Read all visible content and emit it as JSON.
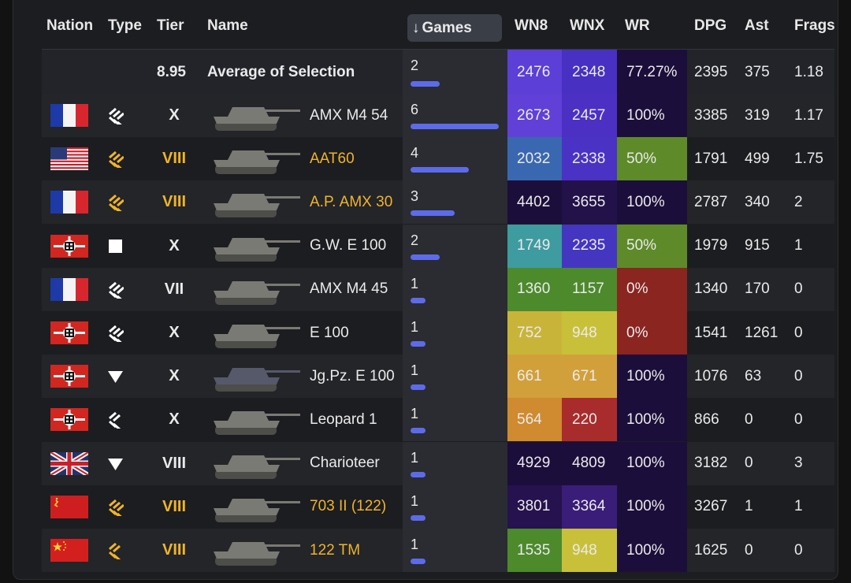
{
  "colors": {
    "tier_highlight": "#f0b429",
    "bar": "#5d6bea",
    "panel_bg": "#1c1d20"
  },
  "headers": {
    "nation": "Nation",
    "type": "Type",
    "tier": "Tier",
    "name": "Name",
    "games": "Games",
    "sort_arrow": "↓",
    "wn8": "WN8",
    "wnx": "WNX",
    "wr": "WR",
    "dpg": "DPG",
    "ast": "Ast",
    "frags": "Frags"
  },
  "average": {
    "tier": "8.95",
    "name": "Average of Selection",
    "games": "2",
    "games_fraction": 0.33,
    "wn8": "2476",
    "wnx": "2348",
    "wr": "77.27%",
    "dpg": "2395",
    "ast": "375",
    "frags": "1.18",
    "wn8_color": "#5b3fd6",
    "wnx_color": "#4730c2",
    "wr_color": "#1c0e3a"
  },
  "rows": [
    {
      "nation": "France",
      "flag": "fr",
      "type_icon": "heavy-tank-icon",
      "type_color": "#ffffff",
      "tier": "X",
      "premium": false,
      "tank_icon": "amx-m4-54-icon",
      "name": "AMX M4 54",
      "games": "6",
      "games_fraction": 1.0,
      "wn8": "2673",
      "wnx": "2457",
      "wr": "100%",
      "dpg": "3385",
      "ast": "319",
      "frags": "1.17",
      "wn8_color": "#6140d8",
      "wnx_color": "#4c30c4",
      "wr_color": "#1c0e3a"
    },
    {
      "nation": "USA",
      "flag": "us",
      "type_icon": "heavy-tank-icon",
      "type_color": "#f0b429",
      "tier": "VIII",
      "premium": true,
      "tank_icon": "aat60-icon",
      "name": "AAT60",
      "games": "4",
      "games_fraction": 0.66,
      "wn8": "2032",
      "wnx": "2338",
      "wr": "50%",
      "dpg": "1791",
      "ast": "499",
      "frags": "1.75",
      "wn8_color": "#3a68b0",
      "wnx_color": "#4a32c4",
      "wr_color": "#5e8a2a"
    },
    {
      "nation": "France",
      "flag": "fr",
      "type_icon": "heavy-tank-icon",
      "type_color": "#f0b429",
      "tier": "VIII",
      "premium": true,
      "tank_icon": "ap-amx-30-icon",
      "name": "A.P. AMX 30",
      "games": "3",
      "games_fraction": 0.5,
      "wn8": "4402",
      "wnx": "3655",
      "wr": "100%",
      "dpg": "2787",
      "ast": "340",
      "frags": "2",
      "wn8_color": "#1c0e3a",
      "wnx_color": "#23114a",
      "wr_color": "#1c0e3a"
    },
    {
      "nation": "Germany",
      "flag": "de",
      "type_icon": "spg-icon",
      "type_color": "#ffffff",
      "tier": "X",
      "premium": false,
      "tank_icon": "gw-e100-icon",
      "name": "G.W. E 100",
      "games": "2",
      "games_fraction": 0.33,
      "wn8": "1749",
      "wnx": "2235",
      "wr": "50%",
      "dpg": "1979",
      "ast": "915",
      "frags": "1",
      "wn8_color": "#3e9ba0",
      "wnx_color": "#4436c0",
      "wr_color": "#5e8a2a"
    },
    {
      "nation": "France",
      "flag": "fr",
      "type_icon": "heavy-tank-icon",
      "type_color": "#ffffff",
      "tier": "VII",
      "premium": false,
      "tank_icon": "amx-m4-45-icon",
      "name": "AMX M4 45",
      "games": "1",
      "games_fraction": 0.17,
      "wn8": "1360",
      "wnx": "1157",
      "wr": "0%",
      "dpg": "1340",
      "ast": "170",
      "frags": "0",
      "wn8_color": "#4c8a2c",
      "wnx_color": "#4c8a2c",
      "wr_color": "#8a2520"
    },
    {
      "nation": "Germany",
      "flag": "de",
      "type_icon": "heavy-tank-icon",
      "type_color": "#ffffff",
      "tier": "X",
      "premium": false,
      "tank_icon": "e100-icon",
      "name": "E 100",
      "games": "1",
      "games_fraction": 0.17,
      "wn8": "752",
      "wnx": "948",
      "wr": "0%",
      "dpg": "1541",
      "ast": "1261",
      "frags": "0",
      "wn8_color": "#c9b43a",
      "wnx_color": "#c9c03a",
      "wr_color": "#8a2520"
    },
    {
      "nation": "Germany",
      "flag": "de",
      "type_icon": "td-icon",
      "type_color": "#ffffff",
      "tier": "X",
      "premium": false,
      "tank_icon": "jgpz-e100-icon",
      "name": "Jg.Pz. E 100",
      "games": "1",
      "games_fraction": 0.17,
      "wn8": "661",
      "wnx": "671",
      "wr": "100%",
      "dpg": "1076",
      "ast": "63",
      "frags": "0",
      "wn8_color": "#d2a03a",
      "wnx_color": "#d2a03a",
      "wr_color": "#1c0e3a"
    },
    {
      "nation": "Germany",
      "flag": "de",
      "type_icon": "medium-tank-icon",
      "type_color": "#ffffff",
      "tier": "X",
      "premium": false,
      "tank_icon": "leopard-1-icon",
      "name": "Leopard 1",
      "games": "1",
      "games_fraction": 0.17,
      "wn8": "564",
      "wnx": "220",
      "wr": "100%",
      "dpg": "866",
      "ast": "0",
      "frags": "0",
      "wn8_color": "#d08a30",
      "wnx_color": "#a92c2c",
      "wr_color": "#1c0e3a"
    },
    {
      "nation": "United Kingdom",
      "flag": "uk",
      "type_icon": "td-icon",
      "type_color": "#ffffff",
      "tier": "VIII",
      "premium": false,
      "tank_icon": "charioteer-icon",
      "name": "Charioteer",
      "games": "1",
      "games_fraction": 0.17,
      "wn8": "4929",
      "wnx": "4809",
      "wr": "100%",
      "dpg": "3182",
      "ast": "0",
      "frags": "3",
      "wn8_color": "#1c0e3a",
      "wnx_color": "#1c0e3a",
      "wr_color": "#1c0e3a"
    },
    {
      "nation": "USSR",
      "flag": "su",
      "type_icon": "heavy-tank-icon",
      "type_color": "#f0b429",
      "tier": "VIII",
      "premium": true,
      "tank_icon": "703-ii-122-icon",
      "name": "703 II (122)",
      "games": "1",
      "games_fraction": 0.17,
      "wn8": "3801",
      "wnx": "3364",
      "wr": "100%",
      "dpg": "3267",
      "ast": "1",
      "frags": "1",
      "wn8_color": "#25124e",
      "wnx_color": "#3a1d78",
      "wr_color": "#1c0e3a"
    },
    {
      "nation": "China",
      "flag": "cn",
      "type_icon": "medium-tank-icon",
      "type_color": "#f0b429",
      "tier": "VIII",
      "premium": true,
      "tank_icon": "122-tm-icon",
      "name": "122 TM",
      "games": "1",
      "games_fraction": 0.17,
      "wn8": "1535",
      "wnx": "948",
      "wr": "100%",
      "dpg": "1625",
      "ast": "0",
      "frags": "0",
      "wn8_color": "#4c8a2c",
      "wnx_color": "#c9c03a",
      "wr_color": "#1c0e3a"
    }
  ]
}
